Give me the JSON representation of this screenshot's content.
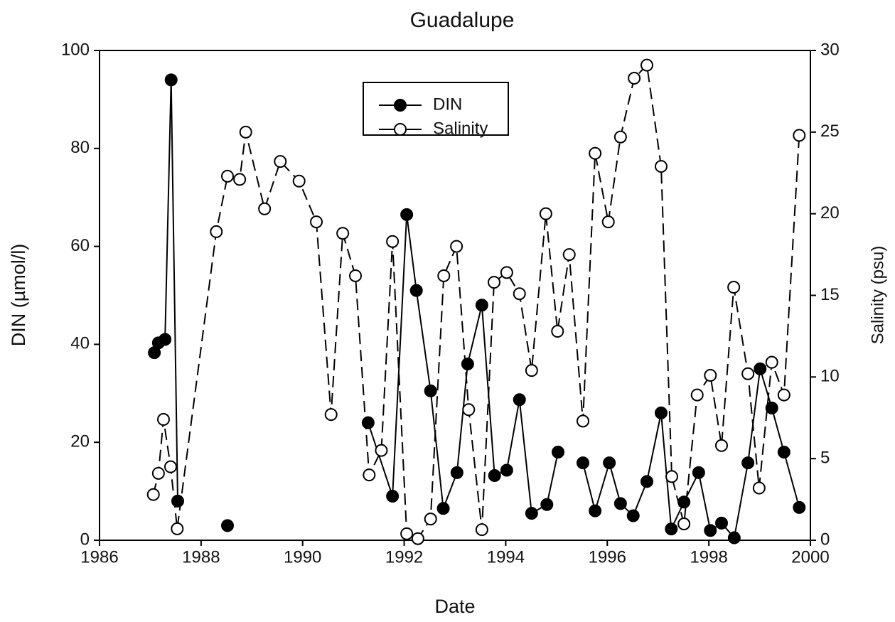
{
  "chart_data": {
    "type": "line",
    "title": "Guadalupe",
    "x_label": "Date",
    "y_label": "DIN (µmol/l)",
    "y2_label": "Salinity (psu)",
    "xlim": [
      1986,
      2000
    ],
    "xticks": [
      1986,
      1988,
      1990,
      1992,
      1994,
      1996,
      1998,
      2000
    ],
    "ylim": [
      0,
      100
    ],
    "yticks": [
      0,
      20,
      40,
      60,
      80,
      100
    ],
    "y2lim": [
      0,
      30
    ],
    "y2ticks": [
      0,
      5,
      10,
      15,
      20,
      25,
      30
    ],
    "legend": "upper center",
    "series": [
      {
        "name": "DIN",
        "color": "#000000",
        "marker": "filled",
        "line": "solid",
        "x": [
          1987.08,
          1987.16,
          1987.29,
          1987.41,
          1987.54,
          null,
          1988.52,
          null,
          1991.29,
          1991.77,
          1992.05,
          1992.24,
          1992.52,
          1992.77,
          1993.04,
          1993.25,
          1993.53,
          1993.78,
          1994.02,
          1994.27,
          1994.51,
          1994.81,
          1995.03,
          null,
          1995.52,
          1995.76,
          1996.04,
          1996.26,
          1996.51,
          1996.78,
          1997.06,
          1997.26,
          1997.51,
          1997.8,
          1998.03,
          1998.25,
          1998.5,
          1998.77,
          1999.01,
          1999.24,
          1999.48,
          1999.78
        ],
        "values": [
          38.3,
          40.3,
          41,
          94,
          8,
          null,
          3,
          null,
          24,
          9,
          66.5,
          51,
          30.5,
          6.5,
          13.8,
          36,
          48,
          13.2,
          14.3,
          28.7,
          5.5,
          7.3,
          18,
          null,
          15.8,
          6,
          15.8,
          7.5,
          5,
          12,
          26,
          2.3,
          7.8,
          13.8,
          2,
          3.5,
          0.5,
          15.8,
          35,
          27,
          18,
          6.7
        ]
      },
      {
        "name": "Salinity",
        "color": "#000000",
        "marker": "open",
        "line": "dashed",
        "axis": "y2",
        "x": [
          1987.06,
          1987.16,
          1987.26,
          1987.4,
          1987.53,
          1988.3,
          1988.52,
          1988.76,
          1988.88,
          1989.25,
          1989.56,
          1989.93,
          1990.27,
          1990.56,
          1990.79,
          1991.04,
          1991.31,
          1991.55,
          1991.77,
          1992.05,
          1992.27,
          1992.52,
          1992.78,
          1993.03,
          1993.27,
          1993.53,
          1993.77,
          1994.02,
          1994.27,
          1994.51,
          1994.79,
          1995.02,
          1995.25,
          1995.52,
          1995.76,
          1996.02,
          1996.26,
          1996.53,
          1996.78,
          1997.06,
          1997.27,
          1997.51,
          1997.77,
          1998.03,
          1998.25,
          1998.49,
          1998.77,
          1998.99,
          1999.24,
          1999.48,
          1999.78
        ],
        "values": [
          2.8,
          4.1,
          7.4,
          4.5,
          0.7,
          18.9,
          22.3,
          22.1,
          25,
          20.3,
          23.2,
          22,
          19.5,
          7.7,
          18.8,
          16.2,
          4,
          5.5,
          18.3,
          0.4,
          0.1,
          1.3,
          16.2,
          18,
          8,
          0.65,
          15.8,
          16.4,
          15.1,
          10.4,
          20,
          12.8,
          17.5,
          7.3,
          23.7,
          19.5,
          24.7,
          28.3,
          29.1,
          22.9,
          3.9,
          1,
          8.9,
          10.1,
          5.8,
          15.5,
          10.2,
          3.2,
          10.9,
          8.9,
          24.8
        ]
      }
    ]
  }
}
